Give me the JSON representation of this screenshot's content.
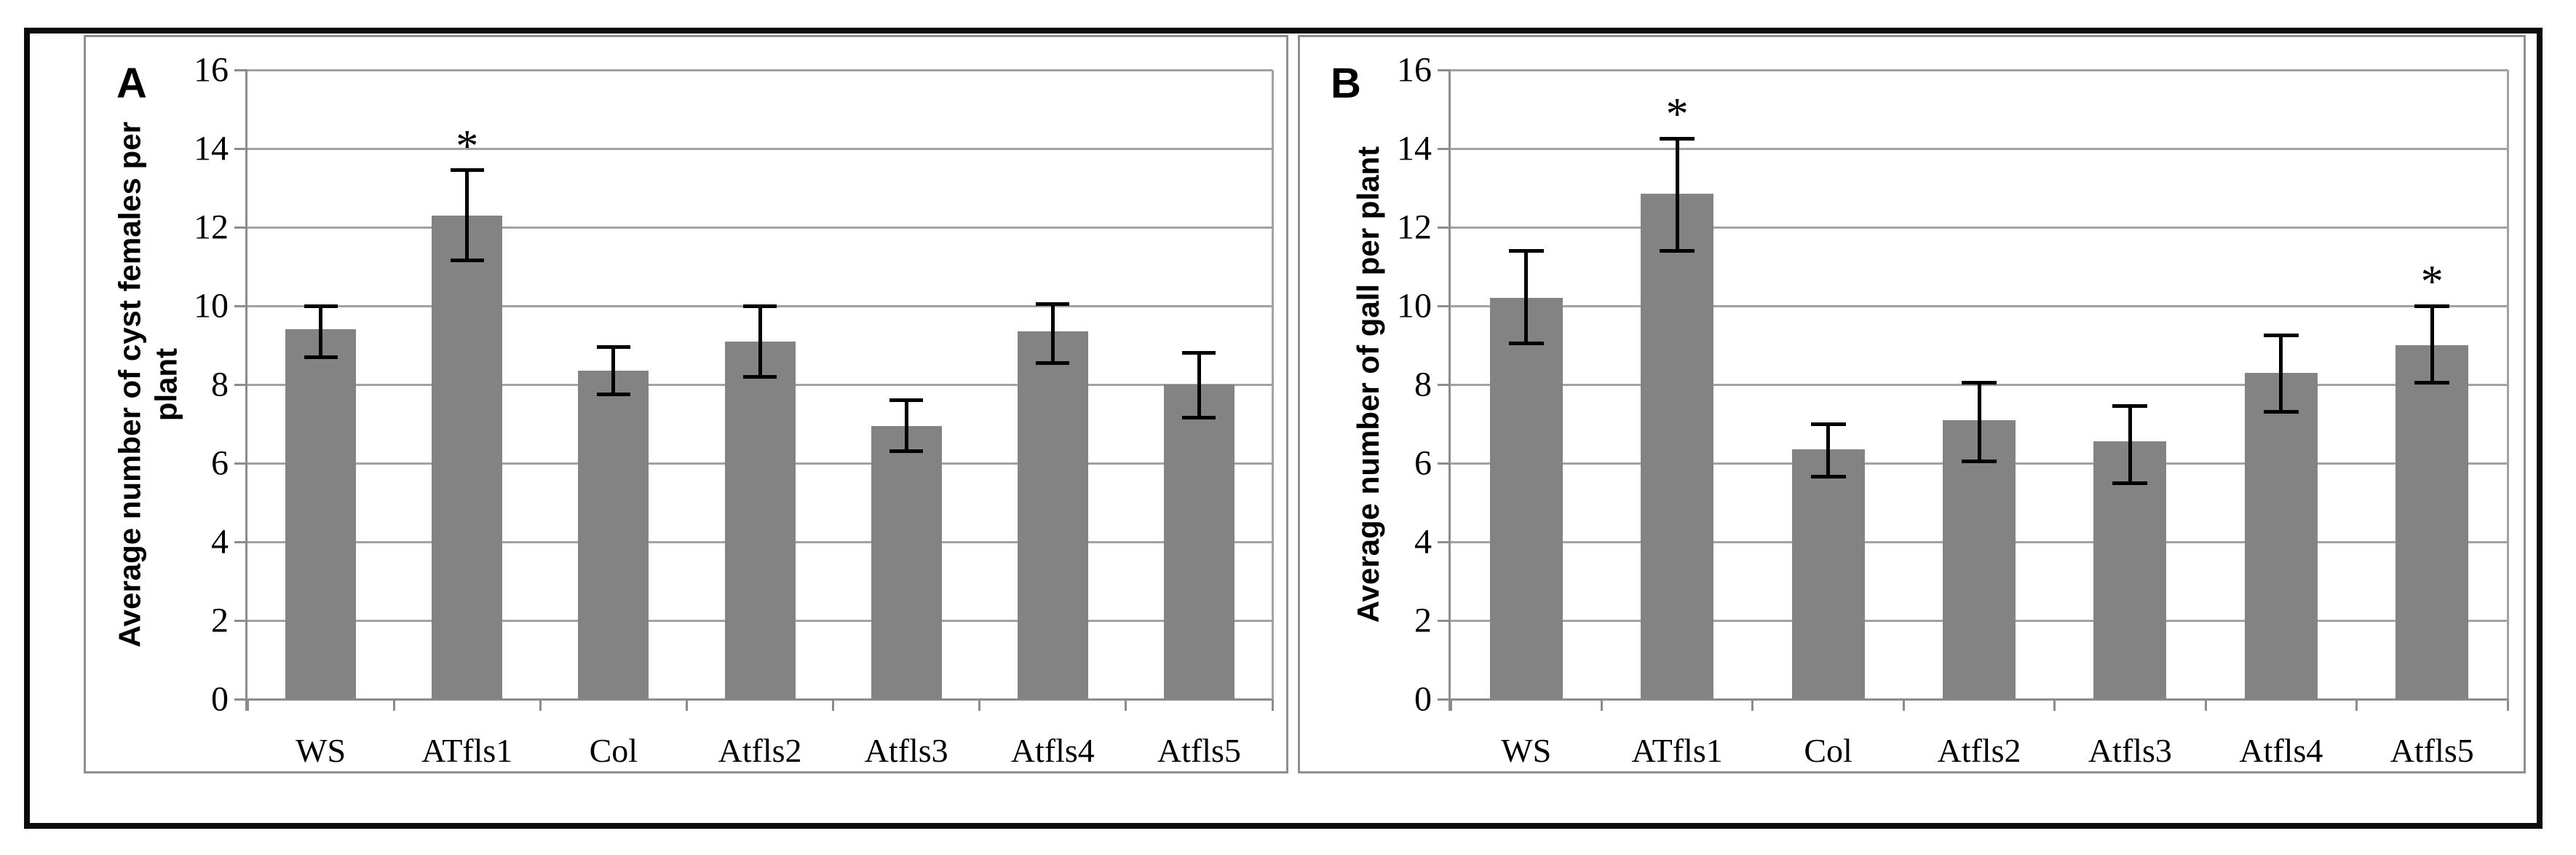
{
  "figure": {
    "background": "#ffffff",
    "colors": {
      "bar": "#838383",
      "gridline": "#a2a2a2",
      "axis": "#8c8c8c",
      "error_bar": "#000000",
      "panel_border": "#8f8f8f",
      "outer_frame": "#0b0b0b",
      "text": "#000000"
    }
  },
  "chart_data": [
    {
      "type": "bar",
      "panel": "A",
      "title": "",
      "xlabel": "",
      "ylabel": "Average number of cyst females per plant",
      "categories": [
        "WS",
        "ATfls1",
        "Col",
        "Atfls2",
        "Atfls3",
        "Atfls4",
        "Atfls5"
      ],
      "values": [
        9.4,
        12.3,
        8.35,
        9.1,
        6.95,
        9.35,
        8.0
      ],
      "error_low": [
        8.7,
        11.15,
        7.75,
        8.2,
        6.3,
        8.55,
        7.15
      ],
      "error_high": [
        10.0,
        13.45,
        8.95,
        10.0,
        7.6,
        10.05,
        8.8
      ],
      "significance": [
        "",
        "*",
        "",
        "",
        "",
        "",
        ""
      ],
      "ylim": [
        0,
        16
      ],
      "ytick_step": 2,
      "yticks": [
        0,
        2,
        4,
        6,
        8,
        10,
        12,
        14,
        16
      ],
      "grid": true,
      "legend": "none"
    },
    {
      "type": "bar",
      "panel": "B",
      "title": "",
      "xlabel": "",
      "ylabel": "Average number of gall per plant",
      "categories": [
        "WS",
        "ATfls1",
        "Col",
        "Atfls2",
        "Atfls3",
        "Atfls4",
        "Atfls5"
      ],
      "values": [
        10.2,
        12.85,
        6.35,
        7.1,
        6.55,
        8.3,
        9.0
      ],
      "error_low": [
        9.05,
        11.4,
        5.65,
        6.05,
        5.5,
        7.3,
        8.05
      ],
      "error_high": [
        11.4,
        14.25,
        7.0,
        8.05,
        7.45,
        9.25,
        10.0
      ],
      "significance": [
        "",
        "*",
        "",
        "",
        "",
        "",
        "*"
      ],
      "ylim": [
        0,
        16
      ],
      "ytick_step": 2,
      "yticks": [
        0,
        2,
        4,
        6,
        8,
        10,
        12,
        14,
        16
      ],
      "grid": true,
      "legend": "none"
    }
  ]
}
